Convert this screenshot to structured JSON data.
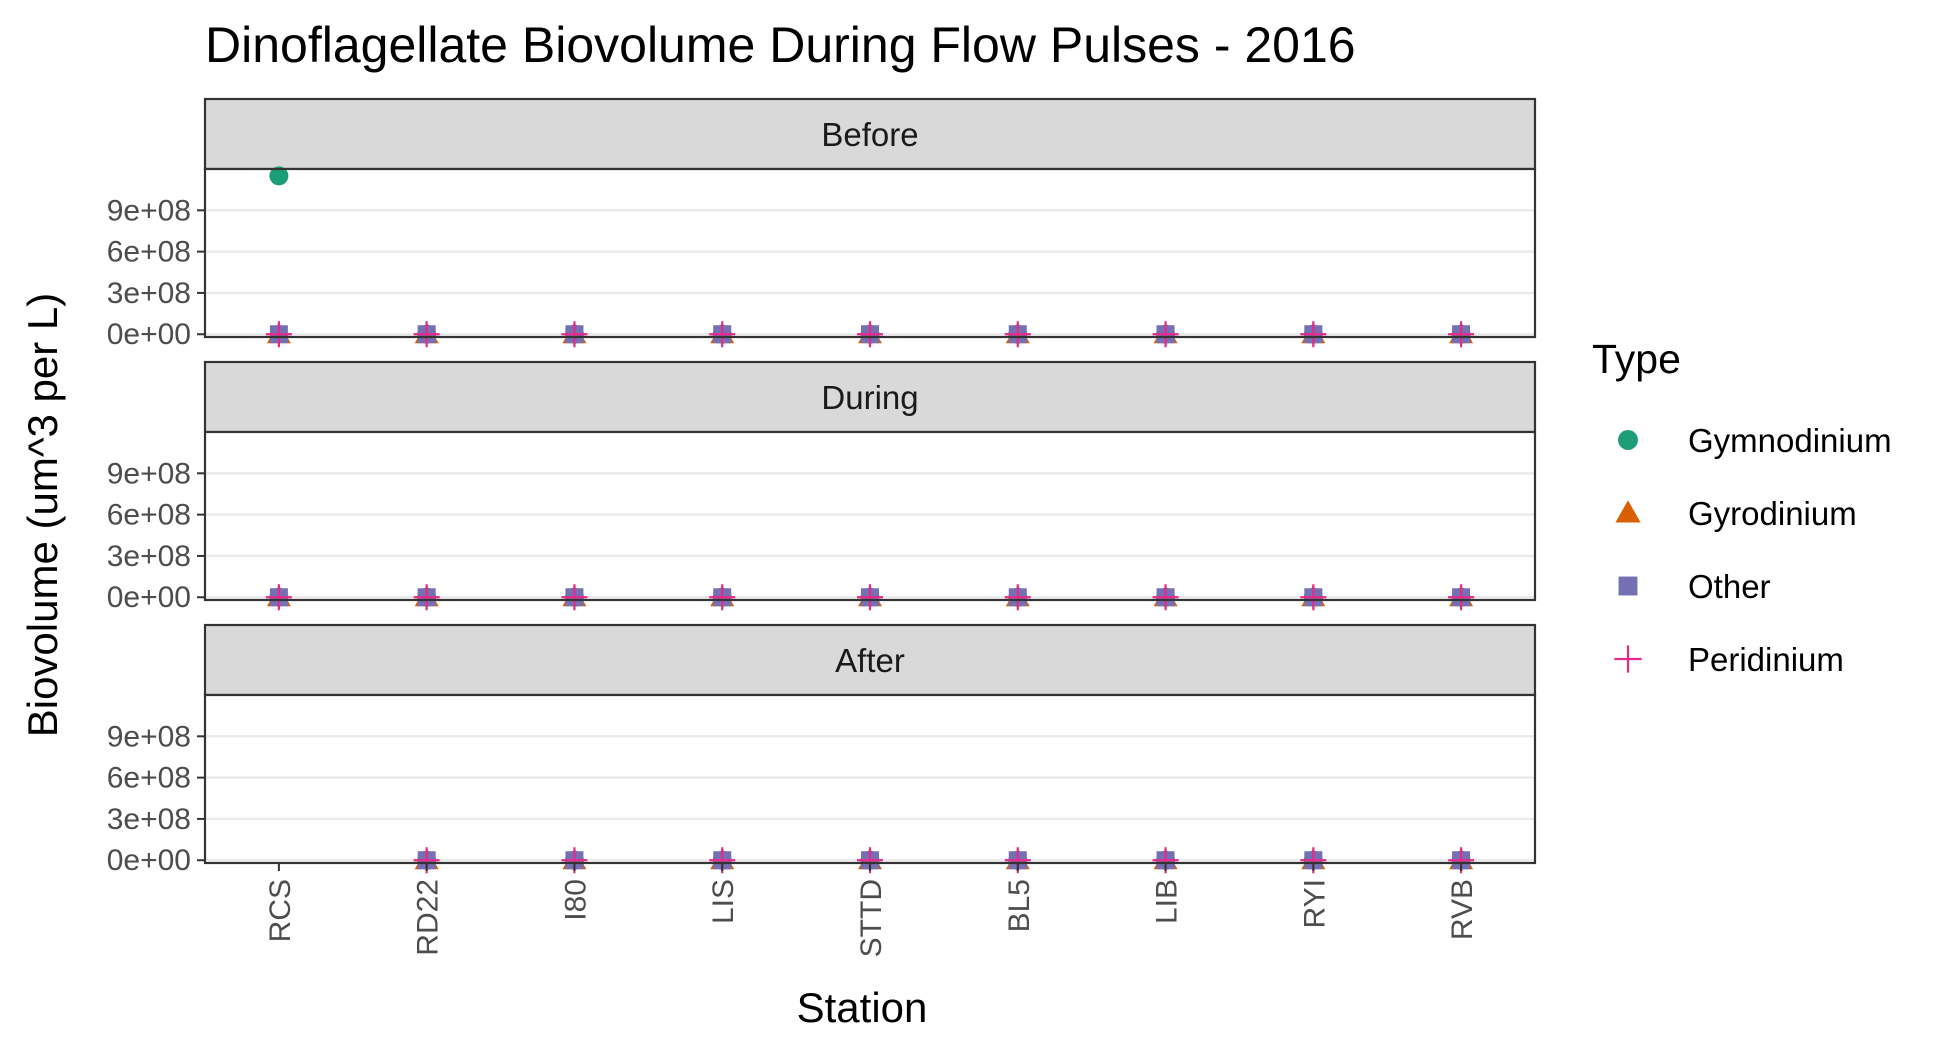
{
  "chart_data": {
    "type": "scatter",
    "title": "Dinoflagellate Biovolume During Flow Pulses - 2016",
    "xlabel": "Station",
    "ylabel": "Biovolume (um^3 per L)",
    "categories": [
      "RCS",
      "RD22",
      "I80",
      "LIS",
      "STTD",
      "BL5",
      "LIB",
      "RYI",
      "RVB"
    ],
    "y_ticks": [
      {
        "value": 0,
        "label": "0e+00"
      },
      {
        "value": 300000000,
        "label": "3e+08"
      },
      {
        "value": 600000000,
        "label": "6e+08"
      },
      {
        "value": 900000000,
        "label": "9e+08"
      }
    ],
    "ylim": [
      -20000000,
      1200000000
    ],
    "grid": true,
    "legend": {
      "title": "Type",
      "position": "right",
      "entries": [
        {
          "name": "Gymnodinium",
          "shape": "circle",
          "color": "#1b9e77"
        },
        {
          "name": "Gyrodinium",
          "shape": "triangle",
          "color": "#d95f02"
        },
        {
          "name": "Other",
          "shape": "square",
          "color": "#7570b3"
        },
        {
          "name": "Peridinium",
          "shape": "plus",
          "color": "#e7298a"
        }
      ]
    },
    "panels": [
      {
        "label": "Before",
        "series": [
          {
            "name": "Gymnodinium",
            "values": [
              1150000000,
              0,
              0,
              0,
              0,
              0,
              0,
              0,
              0
            ]
          },
          {
            "name": "Gyrodinium",
            "values": [
              0,
              0,
              0,
              0,
              0,
              0,
              0,
              0,
              0
            ]
          },
          {
            "name": "Other",
            "values": [
              0,
              0,
              0,
              0,
              0,
              0,
              0,
              0,
              0
            ]
          },
          {
            "name": "Peridinium",
            "values": [
              0,
              0,
              0,
              0,
              0,
              0,
              0,
              0,
              0
            ]
          }
        ]
      },
      {
        "label": "During",
        "series": [
          {
            "name": "Gymnodinium",
            "values": [
              0,
              0,
              0,
              0,
              0,
              0,
              0,
              0,
              0
            ]
          },
          {
            "name": "Gyrodinium",
            "values": [
              0,
              0,
              0,
              0,
              0,
              0,
              0,
              0,
              0
            ]
          },
          {
            "name": "Other",
            "values": [
              0,
              0,
              0,
              0,
              0,
              0,
              0,
              0,
              0
            ]
          },
          {
            "name": "Peridinium",
            "values": [
              0,
              0,
              0,
              0,
              0,
              0,
              0,
              0,
              0
            ]
          }
        ]
      },
      {
        "label": "After",
        "series": [
          {
            "name": "Gymnodinium",
            "values": [
              null,
              0,
              0,
              0,
              0,
              0,
              0,
              0,
              0
            ]
          },
          {
            "name": "Gyrodinium",
            "values": [
              null,
              0,
              0,
              0,
              0,
              0,
              0,
              0,
              0
            ]
          },
          {
            "name": "Other",
            "values": [
              null,
              0,
              0,
              0,
              0,
              0,
              0,
              0,
              0
            ]
          },
          {
            "name": "Peridinium",
            "values": [
              null,
              0,
              0,
              0,
              0,
              0,
              0,
              0,
              0
            ]
          }
        ]
      }
    ]
  }
}
